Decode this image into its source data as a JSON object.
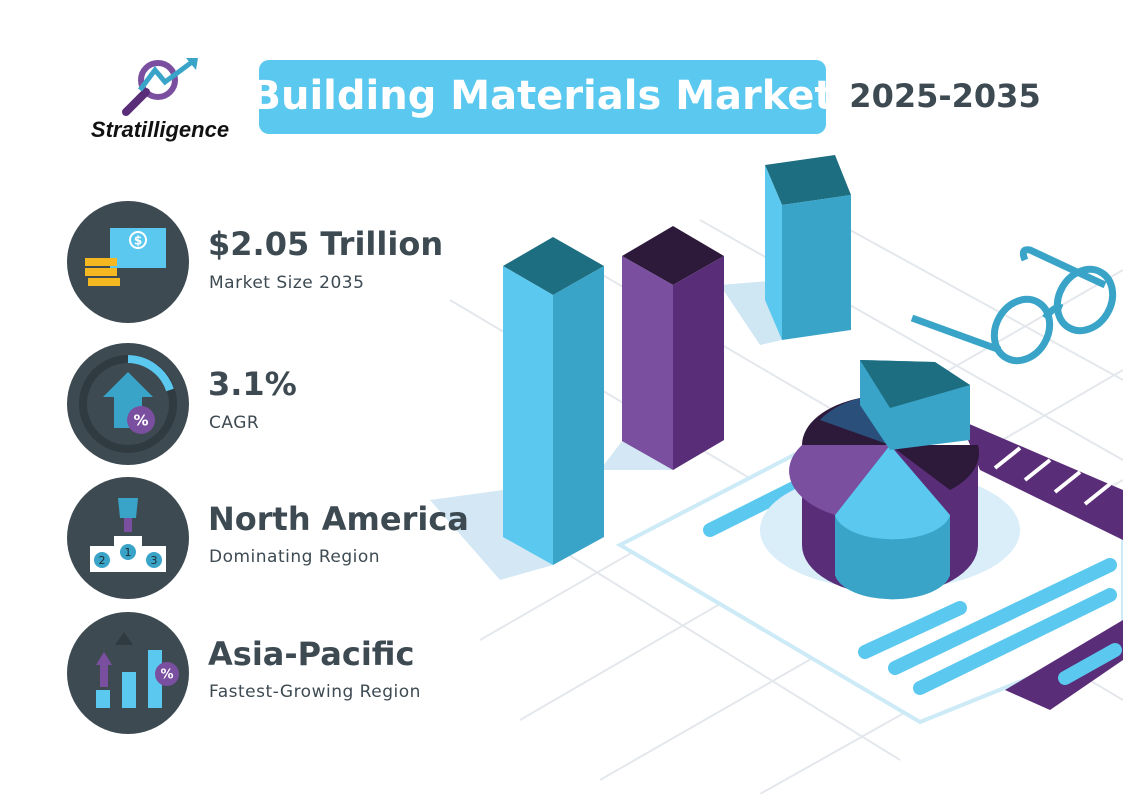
{
  "logo": {
    "name": "Stratilligence"
  },
  "header": {
    "title": "Building Materials Market",
    "period": "2025-2035"
  },
  "stats": [
    {
      "value": "$2.05 Trillion",
      "label": "Market Size 2035",
      "icon_text": [
        "$"
      ]
    },
    {
      "value": "3.1%",
      "label": "CAGR",
      "icon_text": [
        "%"
      ]
    },
    {
      "value": "North America",
      "label": "Dominating  Region",
      "icon_text": [
        "2",
        "1",
        "3"
      ]
    },
    {
      "value": "Asia-Pacific",
      "label": "Fastest-Growing  Region",
      "icon_text": [
        "%"
      ]
    }
  ]
}
